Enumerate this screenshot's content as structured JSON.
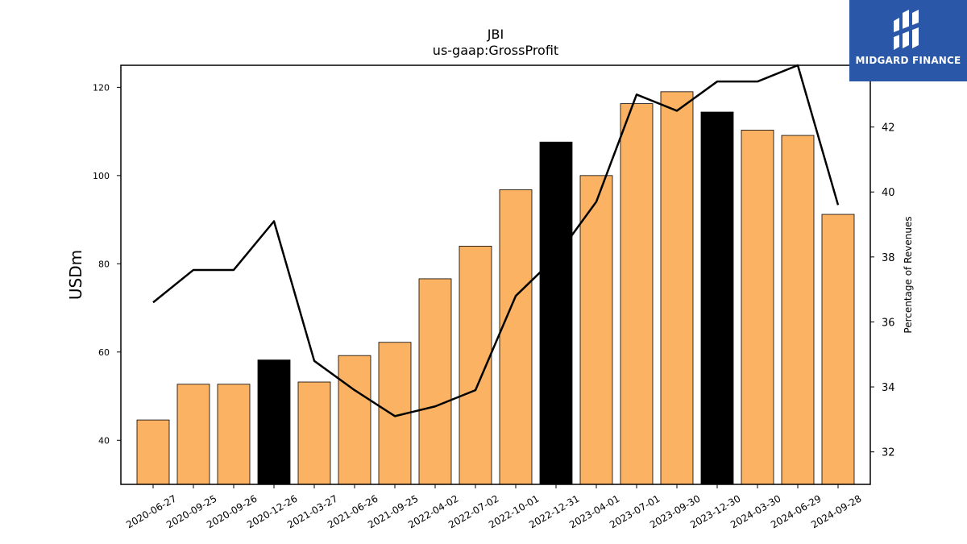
{
  "logo": {
    "text": "MIDGARD FINANCE",
    "background": "#2b57a8"
  },
  "chart_data": {
    "type": "bar",
    "title": "JBI",
    "subtitle": "us-gaap:GrossProfit",
    "ylabel": "USDm",
    "y2label": "Percentage of Revenues",
    "ylim": [
      30,
      125
    ],
    "y2lim": [
      31,
      43.9
    ],
    "yticks": [
      40,
      60,
      80,
      100,
      120
    ],
    "y2ticks": [
      32,
      34,
      36,
      38,
      40,
      42
    ],
    "categories": [
      "2020-06-27",
      "2020-09-25",
      "2020-09-26",
      "2020-12-26",
      "2021-03-27",
      "2021-06-26",
      "2021-09-25",
      "2022-04-02",
      "2022-07-02",
      "2022-10-01",
      "2022-12-31",
      "2023-04-01",
      "2023-07-01",
      "2023-09-30",
      "2023-12-30",
      "2024-03-30",
      "2024-06-29",
      "2024-09-28"
    ],
    "series": [
      {
        "type": "bar",
        "values": [
          44.6,
          52.7,
          52.7,
          58.2,
          53.2,
          59.2,
          62.2,
          76.6,
          84.0,
          96.8,
          107.6,
          100.0,
          116.3,
          119.0,
          114.4,
          110.3,
          109.1,
          91.2
        ]
      },
      {
        "type": "line",
        "axis": "right",
        "values": [
          36.6,
          37.6,
          37.6,
          39.1,
          34.8,
          33.9,
          33.1,
          33.4,
          33.9,
          36.8,
          38.0,
          39.7,
          43.0,
          42.5,
          43.4,
          43.4,
          43.9,
          39.6
        ]
      }
    ],
    "highlight_indices": [
      3,
      10,
      14
    ],
    "colors": {
      "bar": "#fbb263",
      "highlight": "#000000",
      "line": "#000000",
      "bar_edge": "#000000"
    },
    "grid": false,
    "legend": "none"
  }
}
